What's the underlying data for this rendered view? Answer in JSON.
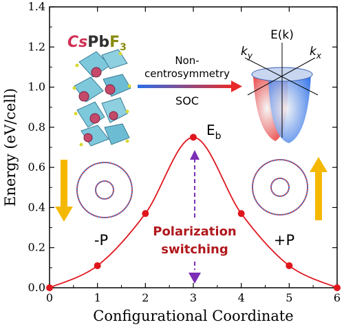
{
  "chart_data": {
    "type": "line",
    "xlabel": "Configurational Coordinate",
    "ylabel": "Energy (eV/cell)",
    "xlim": [
      0,
      6
    ],
    "ylim": [
      0,
      1.4
    ],
    "x_ticks": [
      "0",
      "1",
      "2",
      "3",
      "4",
      "5",
      "6"
    ],
    "y_ticks": [
      "0.0",
      "0.2",
      "0.4",
      "0.6",
      "0.8",
      "1.0",
      "1.2",
      "1.4"
    ],
    "series": [
      {
        "x": [
          0,
          1,
          2,
          3,
          4,
          5,
          6
        ],
        "values": [
          0.0,
          0.11,
          0.37,
          0.75,
          0.37,
          0.11,
          0.0
        ],
        "color": "#e0161d",
        "marker": "circle"
      }
    ],
    "barrier_label": {
      "main": "E",
      "sub": "b"
    },
    "polarization_left": "-P",
    "polarization_right": "+P",
    "switching_label_line1": "Polarization",
    "switching_label_line2": "switching",
    "switching_color": "#b0181d",
    "switch_arrow_color": "#7b2db5",
    "arrow_color": "#f5b800",
    "material": {
      "cs": "Cs",
      "pb": "Pb",
      "f": "F",
      "sub": "3"
    },
    "material_colors": {
      "cs": "#d03055",
      "pb": "#303030",
      "f": "#8a8a10"
    },
    "center_label_line1": "Non-",
    "center_label_line2": "centrosymmetry",
    "center_label_line3": "SOC",
    "band_labels": {
      "ky": "k",
      "ky_sub": "y",
      "kx": "k",
      "kx_sub": "x",
      "ek": "E(k)"
    },
    "band_colors": {
      "red": "#e82a2a",
      "blue": "#2a6ee8"
    }
  }
}
